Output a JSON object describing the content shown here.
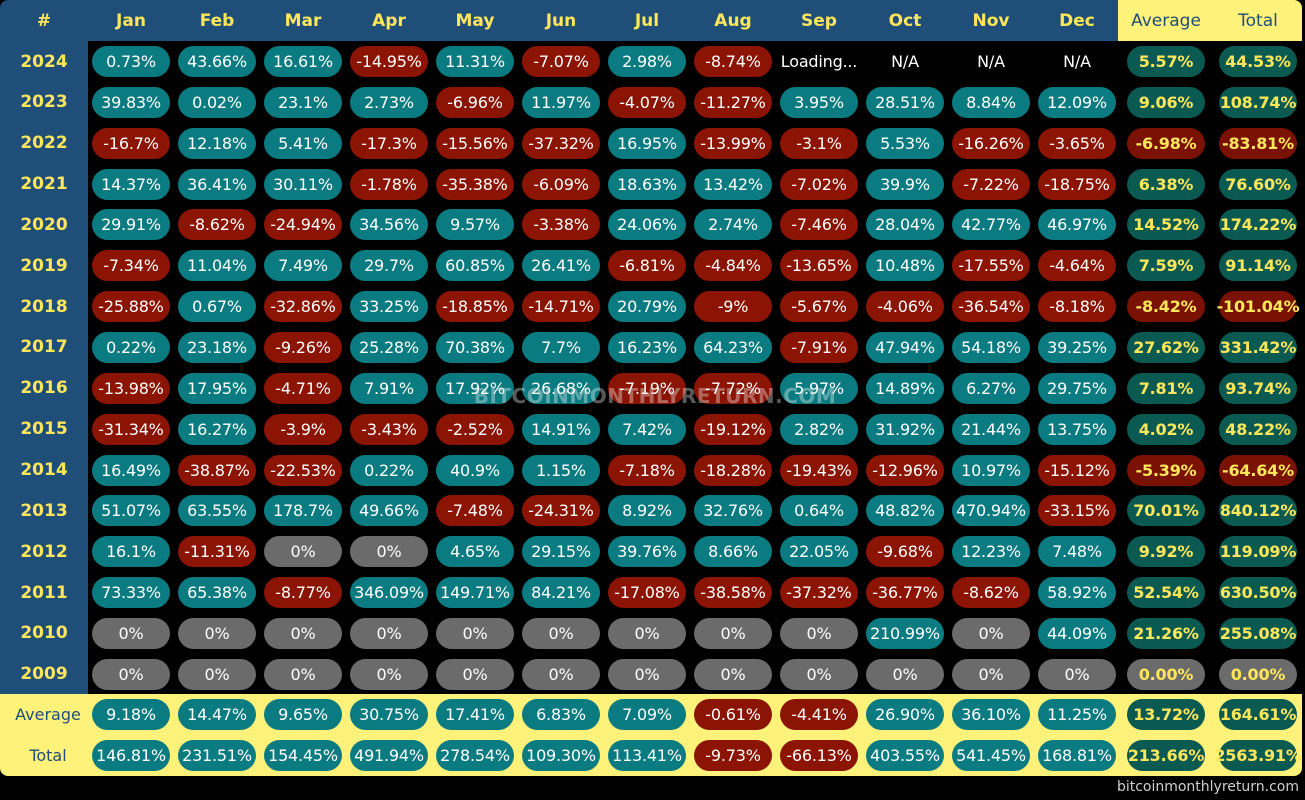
{
  "chart_data": {
    "type": "table",
    "corner_label": "#",
    "columns": [
      "Jan",
      "Feb",
      "Mar",
      "Apr",
      "May",
      "Jun",
      "Jul",
      "Aug",
      "Sep",
      "Oct",
      "Nov",
      "Dec"
    ],
    "summary_columns": [
      "Average",
      "Total"
    ],
    "rows": [
      {
        "year": "2024",
        "values": [
          "0.73%",
          "43.66%",
          "16.61%",
          "-14.95%",
          "11.31%",
          "-7.07%",
          "2.98%",
          "-8.74%",
          "Loading...",
          "N/A",
          "N/A",
          "N/A"
        ],
        "average": "5.57%",
        "total": "44.53%"
      },
      {
        "year": "2023",
        "values": [
          "39.83%",
          "0.02%",
          "23.1%",
          "2.73%",
          "-6.96%",
          "11.97%",
          "-4.07%",
          "-11.27%",
          "3.95%",
          "28.51%",
          "8.84%",
          "12.09%"
        ],
        "average": "9.06%",
        "total": "108.74%"
      },
      {
        "year": "2022",
        "values": [
          "-16.7%",
          "12.18%",
          "5.41%",
          "-17.3%",
          "-15.56%",
          "-37.32%",
          "16.95%",
          "-13.99%",
          "-3.1%",
          "5.53%",
          "-16.26%",
          "-3.65%"
        ],
        "average": "-6.98%",
        "total": "-83.81%"
      },
      {
        "year": "2021",
        "values": [
          "14.37%",
          "36.41%",
          "30.11%",
          "-1.78%",
          "-35.38%",
          "-6.09%",
          "18.63%",
          "13.42%",
          "-7.02%",
          "39.9%",
          "-7.22%",
          "-18.75%"
        ],
        "average": "6.38%",
        "total": "76.60%"
      },
      {
        "year": "2020",
        "values": [
          "29.91%",
          "-8.62%",
          "-24.94%",
          "34.56%",
          "9.57%",
          "-3.38%",
          "24.06%",
          "2.74%",
          "-7.46%",
          "28.04%",
          "42.77%",
          "46.97%"
        ],
        "average": "14.52%",
        "total": "174.22%"
      },
      {
        "year": "2019",
        "values": [
          "-7.34%",
          "11.04%",
          "7.49%",
          "29.7%",
          "60.85%",
          "26.41%",
          "-6.81%",
          "-4.84%",
          "-13.65%",
          "10.48%",
          "-17.55%",
          "-4.64%"
        ],
        "average": "7.59%",
        "total": "91.14%"
      },
      {
        "year": "2018",
        "values": [
          "-25.88%",
          "0.67%",
          "-32.86%",
          "33.25%",
          "-18.85%",
          "-14.71%",
          "20.79%",
          "-9%",
          "-5.67%",
          "-4.06%",
          "-36.54%",
          "-8.18%"
        ],
        "average": "-8.42%",
        "total": "-101.04%"
      },
      {
        "year": "2017",
        "values": [
          "0.22%",
          "23.18%",
          "-9.26%",
          "25.28%",
          "70.38%",
          "7.7%",
          "16.23%",
          "64.23%",
          "-7.91%",
          "47.94%",
          "54.18%",
          "39.25%"
        ],
        "average": "27.62%",
        "total": "331.42%"
      },
      {
        "year": "2016",
        "values": [
          "-13.98%",
          "17.95%",
          "-4.71%",
          "7.91%",
          "17.92%",
          "26.68%",
          "-7.19%",
          "-7.72%",
          "5.97%",
          "14.89%",
          "6.27%",
          "29.75%"
        ],
        "average": "7.81%",
        "total": "93.74%"
      },
      {
        "year": "2015",
        "values": [
          "-31.34%",
          "16.27%",
          "-3.9%",
          "-3.43%",
          "-2.52%",
          "14.91%",
          "7.42%",
          "-19.12%",
          "2.82%",
          "31.92%",
          "21.44%",
          "13.75%"
        ],
        "average": "4.02%",
        "total": "48.22%"
      },
      {
        "year": "2014",
        "values": [
          "16.49%",
          "-38.87%",
          "-22.53%",
          "0.22%",
          "40.9%",
          "1.15%",
          "-7.18%",
          "-18.28%",
          "-19.43%",
          "-12.96%",
          "10.97%",
          "-15.12%"
        ],
        "average": "-5.39%",
        "total": "-64.64%"
      },
      {
        "year": "2013",
        "values": [
          "51.07%",
          "63.55%",
          "178.7%",
          "49.66%",
          "-7.48%",
          "-24.31%",
          "8.92%",
          "32.76%",
          "0.64%",
          "48.82%",
          "470.94%",
          "-33.15%"
        ],
        "average": "70.01%",
        "total": "840.12%"
      },
      {
        "year": "2012",
        "values": [
          "16.1%",
          "-11.31%",
          "0%",
          "0%",
          "4.65%",
          "29.15%",
          "39.76%",
          "8.66%",
          "22.05%",
          "-9.68%",
          "12.23%",
          "7.48%"
        ],
        "average": "9.92%",
        "total": "119.09%"
      },
      {
        "year": "2011",
        "values": [
          "73.33%",
          "65.38%",
          "-8.77%",
          "346.09%",
          "149.71%",
          "84.21%",
          "-17.08%",
          "-38.58%",
          "-37.32%",
          "-36.77%",
          "-8.62%",
          "58.92%"
        ],
        "average": "52.54%",
        "total": "630.50%"
      },
      {
        "year": "2010",
        "values": [
          "0%",
          "0%",
          "0%",
          "0%",
          "0%",
          "0%",
          "0%",
          "0%",
          "0%",
          "210.99%",
          "0%",
          "44.09%"
        ],
        "average": "21.26%",
        "total": "255.08%"
      },
      {
        "year": "2009",
        "values": [
          "0%",
          "0%",
          "0%",
          "0%",
          "0%",
          "0%",
          "0%",
          "0%",
          "0%",
          "0%",
          "0%",
          "0%"
        ],
        "average": "0.00%",
        "total": "0.00%"
      }
    ],
    "footer_rows": [
      {
        "label": "Average",
        "values": [
          "9.18%",
          "14.47%",
          "9.65%",
          "30.75%",
          "17.41%",
          "6.83%",
          "7.09%",
          "-0.61%",
          "-4.41%",
          "26.90%",
          "36.10%",
          "11.25%"
        ],
        "average": "13.72%",
        "total": "164.61%"
      },
      {
        "label": "Total",
        "values": [
          "146.81%",
          "231.51%",
          "154.45%",
          "491.94%",
          "278.54%",
          "109.30%",
          "113.41%",
          "-9.73%",
          "-66.13%",
          "403.55%",
          "541.45%",
          "168.81%"
        ],
        "average": "213.66%",
        "total": "2563.91%"
      }
    ],
    "colors": {
      "header_bg": "#1f4e78",
      "highlight_bg": "#fff27a",
      "positive": "#0a7b80",
      "negative": "#8b1404",
      "zero": "#6b6b6b",
      "label_text": "#ffe65a"
    }
  },
  "watermark": "BITCOINMONTHLYRETURN.COM",
  "site_url": "bitcoinmonthlyreturn.com"
}
